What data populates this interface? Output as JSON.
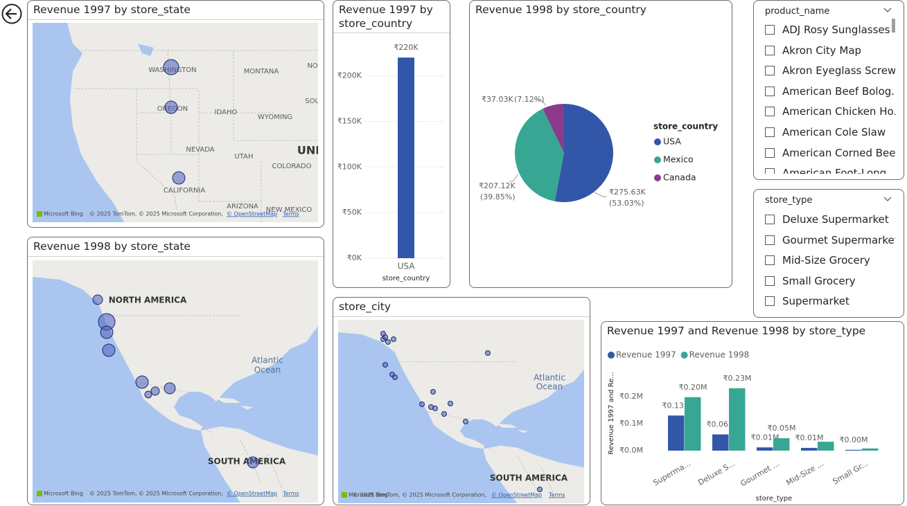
{
  "chart_data": [
    {
      "type": "bar",
      "title": "Revenue 1997 by store_country",
      "x_label": "store_country",
      "categories": [
        "USA"
      ],
      "values": [
        220000
      ],
      "value_labels": [
        "₹220K"
      ],
      "color": "#3257a8",
      "ylim": [
        0,
        230000
      ],
      "yticks": [
        {
          "value": 0,
          "label": "₹0K"
        },
        {
          "value": 50000,
          "label": "₹50K"
        },
        {
          "value": 100000,
          "label": "₹100K"
        },
        {
          "value": 150000,
          "label": "₹150K"
        },
        {
          "value": 200000,
          "label": "₹200K"
        }
      ],
      "grid": true
    },
    {
      "type": "pie",
      "title": "Revenue 1998 by store_country",
      "legend_title": "store_country",
      "categories": [
        "USA",
        "Mexico",
        "Canada"
      ],
      "values": [
        275630,
        207120,
        37030
      ],
      "value_labels": [
        "₹275.63K",
        "₹207.12K",
        "₹37.03K"
      ],
      "percent_labels": [
        "(53.03%)",
        "(39.85%)",
        "(7.12%)"
      ],
      "colors": [
        "#3257a8",
        "#37a794",
        "#8a3c8a"
      ],
      "legend": "right"
    },
    {
      "type": "grouped_bar",
      "title": "Revenue 1997 and Revenue 1998 by store_type",
      "x_label": "store_type",
      "y_label": "Revenue 1997 and Re...",
      "categories": [
        "Superma...",
        "Deluxe S...",
        "Gourmet ...",
        "Mid-Size ...",
        "Small Gr..."
      ],
      "series": [
        {
          "name": "Revenue 1997",
          "color": "#3257a8",
          "values": [
            130000,
            60000,
            12000,
            10000,
            3000
          ],
          "value_labels": [
            "₹0.13M",
            "₹0.06M",
            "₹0.01M",
            "₹0.01M",
            "₹0.00M"
          ]
        },
        {
          "name": "Revenue 1998",
          "color": "#37a794",
          "values": [
            198000,
            231000,
            46000,
            33000,
            8000
          ],
          "value_labels": [
            "₹0.20M",
            "₹0.23M",
            "₹0.05M",
            null,
            null
          ]
        }
      ],
      "ylim": [
        0,
        280000
      ],
      "yticks": [
        {
          "value": 0,
          "label": "₹0.0M"
        },
        {
          "value": 100000,
          "label": "₹0.1M"
        },
        {
          "value": 200000,
          "label": "₹0.2M"
        }
      ],
      "legend": "top-left",
      "grid": false
    }
  ],
  "maps": [
    {
      "title": "Revenue 1997 by store_state",
      "labels": [
        "WASHINGTON",
        "MONTANA",
        "NO",
        "OREGON",
        "IDAHO",
        "SOU",
        "WYOMING",
        "NEVADA",
        "UTAH",
        "UNI",
        "COLORADO",
        "CALIFORNIA",
        "ARIZONA",
        "NEW MEXICO"
      ],
      "attribution": {
        "logo": "Microsoft Bing",
        "copyright": "© 2025 TomTom, © 2025 Microsoft Corporation,",
        "osm": "© OpenStreetMap",
        "terms": "Terms"
      }
    },
    {
      "title": "Revenue 1998 by store_state",
      "labels": [
        "NORTH AMERICA",
        "Atlantic",
        "Ocean",
        "SOUTH AMERICA"
      ],
      "attribution": {
        "logo": "Microsoft Bing",
        "copyright": "© 2025 TomTom, © 2025 Microsoft Corporation,",
        "osm": "© OpenStreetMap",
        "terms": "Terms"
      }
    },
    {
      "title": "store_city",
      "labels": [
        "Atlantic",
        "Ocean",
        "SOUTH AMERICA"
      ],
      "attribution": {
        "logo": "Microsoft Bing",
        "copyright": "© 2025 TomTom, © 2025 Microsoft Corporation,",
        "osm": "© OpenStreetMap",
        "terms": "Terms"
      }
    }
  ],
  "slicers": [
    {
      "title": "product_name",
      "items": [
        "ADJ Rosy Sunglasses",
        "Akron City Map",
        "Akron Eyeglass Screw...",
        "American Beef Bolog...",
        "American Chicken Ho...",
        "American Cole Slaw",
        "American Corned Beef",
        "American Foot-Long..."
      ]
    },
    {
      "title": "store_type",
      "items": [
        "Deluxe Supermarket",
        "Gourmet Supermarket",
        "Mid-Size Grocery",
        "Small Grocery",
        "Supermarket"
      ]
    }
  ]
}
